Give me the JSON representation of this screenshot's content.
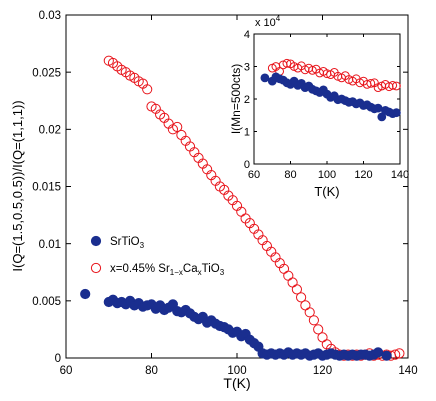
{
  "chart_data": [
    {
      "type": "scatter",
      "xlabel": "T(K)",
      "ylabel": "I(Q=(1.5,0.5,0.5))/I(Q=(1,1,1))",
      "xlim": [
        60,
        140
      ],
      "ylim": [
        0,
        0.03
      ],
      "xticks": [
        60,
        80,
        100,
        120,
        140
      ],
      "yticks": [
        0,
        0.005,
        0.01,
        0.015,
        0.02,
        0.025,
        0.03
      ],
      "xtick_labels": [
        "60",
        "80",
        "100",
        "120",
        "140"
      ],
      "ytick_labels": [
        "0",
        "0.005",
        "0.01",
        "0.015",
        "0.02",
        "0.025",
        "0.03"
      ],
      "grid": false,
      "legend_placement": "center-left",
      "series": [
        {
          "name": "SrTiO3",
          "label_main": "SrTiO",
          "label_sub": "3",
          "marker": "filled-circle",
          "color": "#1a2e8f",
          "x": [
            64.5,
            70,
            71,
            72,
            73,
            74,
            75,
            76,
            77,
            78,
            79,
            80,
            81,
            82,
            83,
            84,
            85,
            86,
            87,
            88,
            89,
            90,
            91,
            92,
            93,
            94,
            95,
            96,
            97,
            98,
            99,
            100,
            101,
            102,
            103,
            104,
            105,
            106,
            107,
            108,
            109,
            110,
            111,
            112,
            113,
            114,
            115,
            116,
            117,
            118,
            119,
            120,
            121,
            122,
            123,
            124,
            125,
            126,
            127,
            128,
            129,
            130,
            131,
            132,
            133,
            135
          ],
          "y": [
            0.0056,
            0.0049,
            0.0051,
            0.0048,
            0.0049,
            0.0047,
            0.005,
            0.0046,
            0.0048,
            0.0045,
            0.0046,
            0.0047,
            0.0043,
            0.0046,
            0.0042,
            0.0044,
            0.0047,
            0.0041,
            0.004,
            0.0042,
            0.0039,
            0.0036,
            0.0034,
            0.0036,
            0.0031,
            0.0033,
            0.003,
            0.0028,
            0.0027,
            0.0025,
            0.0022,
            0.0023,
            0.0019,
            0.0021,
            0.0016,
            0.0013,
            0.001,
            0.0004,
            0.0003,
            0.0004,
            0.0003,
            0.0004,
            0.0003,
            0.0005,
            0.0003,
            0.0004,
            0.0003,
            0.0004,
            0.0002,
            0.0003,
            0.0004,
            0.0002,
            0.0003,
            0.0004,
            0.0003,
            0.0002,
            0.0003,
            0.0002,
            0.0003,
            0.0002,
            0.0003,
            0.0003,
            0.0002,
            0.0003,
            0.0005,
            0.0002
          ]
        },
        {
          "name": "x=0.45% Sr1-xCaxTiO3",
          "label_main": "x=0.45% Sr",
          "label_sub": "1−x",
          "label_mid": "Ca",
          "label_sub2": "x",
          "label_tail": "TiO",
          "label_sub3": "3",
          "marker": "open-circle",
          "color": "#e8141b",
          "x": [
            70,
            71,
            72,
            73,
            74,
            75,
            76,
            77,
            78,
            79,
            80,
            81,
            82,
            83,
            84,
            85,
            86,
            87,
            88,
            89,
            90,
            91,
            92,
            93,
            94,
            95,
            96,
            97,
            98,
            99,
            100,
            101,
            102,
            103,
            104,
            105,
            106,
            107,
            108,
            109,
            110,
            111,
            112,
            113,
            114,
            115,
            116,
            117,
            118,
            119,
            120,
            121,
            122,
            123,
            124,
            125,
            126,
            127,
            128,
            129,
            130,
            131,
            132,
            133,
            134,
            135,
            136,
            137,
            138
          ],
          "y": [
            0.026,
            0.0258,
            0.0255,
            0.0252,
            0.025,
            0.0247,
            0.0245,
            0.0242,
            0.024,
            0.0235,
            0.022,
            0.0218,
            0.0213,
            0.021,
            0.0205,
            0.02,
            0.0202,
            0.0195,
            0.019,
            0.0185,
            0.018,
            0.0175,
            0.017,
            0.0165,
            0.016,
            0.0155,
            0.015,
            0.0147,
            0.0142,
            0.0138,
            0.0133,
            0.0128,
            0.0122,
            0.0118,
            0.0113,
            0.0108,
            0.0103,
            0.0098,
            0.0093,
            0.0088,
            0.0083,
            0.0078,
            0.0072,
            0.0066,
            0.006,
            0.0053,
            0.0046,
            0.004,
            0.0033,
            0.0025,
            0.0018,
            0.0012,
            0.0008,
            0.0005,
            0.0003,
            0.0002,
            0.0003,
            0.0002,
            0.0003,
            0.0002,
            0.0003,
            0.0004,
            0.0002,
            0.0003,
            0.0002,
            0.0003,
            0.0002,
            0.0003,
            0.0004
          ]
        }
      ]
    },
    {
      "type": "scatter",
      "inset": true,
      "xlabel": "T(K)",
      "ylabel": "I(Mn=500cts)",
      "y_multiplier": "x 10",
      "y_multiplier_exp": "4",
      "xlim": [
        60,
        140
      ],
      "ylim": [
        0,
        4
      ],
      "xticks": [
        60,
        80,
        100,
        120,
        140
      ],
      "yticks": [
        0,
        1,
        2,
        3,
        4
      ],
      "xtick_labels": [
        "60",
        "80",
        "100",
        "120",
        "140"
      ],
      "ytick_labels": [
        "0",
        "1",
        "2",
        "3",
        "4"
      ],
      "series": [
        {
          "marker": "filled-circle",
          "color": "#1a2e8f",
          "x": [
            66,
            70,
            72,
            74,
            76,
            78,
            80,
            82,
            84,
            86,
            88,
            90,
            92,
            94,
            96,
            98,
            100,
            102,
            104,
            106,
            108,
            110,
            112,
            114,
            116,
            118,
            120,
            122,
            124,
            126,
            128,
            130,
            132,
            134,
            136,
            138
          ],
          "y": [
            2.65,
            2.55,
            2.68,
            2.62,
            2.58,
            2.5,
            2.45,
            2.55,
            2.42,
            2.48,
            2.35,
            2.4,
            2.3,
            2.25,
            2.2,
            2.28,
            2.15,
            2.05,
            2.1,
            1.98,
            2.0,
            1.95,
            1.9,
            1.92,
            1.85,
            1.88,
            1.8,
            1.82,
            1.75,
            1.7,
            1.72,
            1.45,
            1.65,
            1.6,
            1.55,
            1.58
          ]
        },
        {
          "marker": "open-circle",
          "color": "#e8141b",
          "x": [
            70,
            72,
            74,
            76,
            78,
            80,
            82,
            84,
            86,
            88,
            90,
            92,
            94,
            96,
            98,
            100,
            102,
            104,
            106,
            108,
            110,
            112,
            114,
            116,
            118,
            120,
            122,
            124,
            126,
            128,
            130,
            132,
            134,
            136,
            138
          ],
          "y": [
            2.95,
            3.0,
            2.85,
            3.05,
            3.1,
            3.08,
            3.0,
            2.95,
            3.02,
            2.9,
            2.95,
            2.88,
            2.92,
            2.8,
            2.85,
            2.78,
            2.75,
            2.82,
            2.7,
            2.65,
            2.72,
            2.6,
            2.55,
            2.62,
            2.5,
            2.55,
            2.45,
            2.48,
            2.5,
            2.35,
            2.4,
            2.45,
            2.38,
            2.42,
            2.4
          ]
        }
      ]
    }
  ]
}
